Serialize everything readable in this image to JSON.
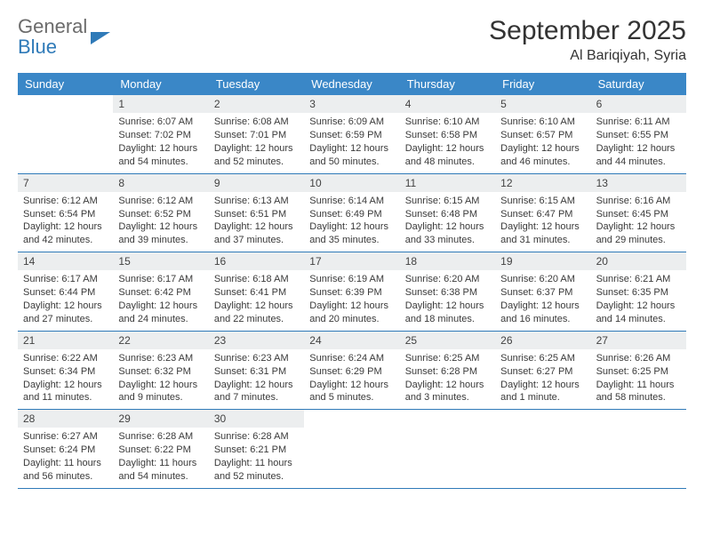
{
  "logo": {
    "line1": "General",
    "line2": "Blue"
  },
  "header": {
    "month": "September 2025",
    "location": "Al Bariqiyah, Syria"
  },
  "weekdays": [
    "Sunday",
    "Monday",
    "Tuesday",
    "Wednesday",
    "Thursday",
    "Friday",
    "Saturday"
  ],
  "colors": {
    "header_bg": "#3a87c7",
    "row_border": "#2f7ab8",
    "daynum_bg": "#eceeef",
    "logo_gray": "#6b6b6b",
    "logo_blue": "#2f7ab8"
  },
  "weeks": [
    [
      {
        "n": "",
        "sr": "",
        "ss": "",
        "dl": ""
      },
      {
        "n": "1",
        "sr": "Sunrise: 6:07 AM",
        "ss": "Sunset: 7:02 PM",
        "dl": "Daylight: 12 hours and 54 minutes."
      },
      {
        "n": "2",
        "sr": "Sunrise: 6:08 AM",
        "ss": "Sunset: 7:01 PM",
        "dl": "Daylight: 12 hours and 52 minutes."
      },
      {
        "n": "3",
        "sr": "Sunrise: 6:09 AM",
        "ss": "Sunset: 6:59 PM",
        "dl": "Daylight: 12 hours and 50 minutes."
      },
      {
        "n": "4",
        "sr": "Sunrise: 6:10 AM",
        "ss": "Sunset: 6:58 PM",
        "dl": "Daylight: 12 hours and 48 minutes."
      },
      {
        "n": "5",
        "sr": "Sunrise: 6:10 AM",
        "ss": "Sunset: 6:57 PM",
        "dl": "Daylight: 12 hours and 46 minutes."
      },
      {
        "n": "6",
        "sr": "Sunrise: 6:11 AM",
        "ss": "Sunset: 6:55 PM",
        "dl": "Daylight: 12 hours and 44 minutes."
      }
    ],
    [
      {
        "n": "7",
        "sr": "Sunrise: 6:12 AM",
        "ss": "Sunset: 6:54 PM",
        "dl": "Daylight: 12 hours and 42 minutes."
      },
      {
        "n": "8",
        "sr": "Sunrise: 6:12 AM",
        "ss": "Sunset: 6:52 PM",
        "dl": "Daylight: 12 hours and 39 minutes."
      },
      {
        "n": "9",
        "sr": "Sunrise: 6:13 AM",
        "ss": "Sunset: 6:51 PM",
        "dl": "Daylight: 12 hours and 37 minutes."
      },
      {
        "n": "10",
        "sr": "Sunrise: 6:14 AM",
        "ss": "Sunset: 6:49 PM",
        "dl": "Daylight: 12 hours and 35 minutes."
      },
      {
        "n": "11",
        "sr": "Sunrise: 6:15 AM",
        "ss": "Sunset: 6:48 PM",
        "dl": "Daylight: 12 hours and 33 minutes."
      },
      {
        "n": "12",
        "sr": "Sunrise: 6:15 AM",
        "ss": "Sunset: 6:47 PM",
        "dl": "Daylight: 12 hours and 31 minutes."
      },
      {
        "n": "13",
        "sr": "Sunrise: 6:16 AM",
        "ss": "Sunset: 6:45 PM",
        "dl": "Daylight: 12 hours and 29 minutes."
      }
    ],
    [
      {
        "n": "14",
        "sr": "Sunrise: 6:17 AM",
        "ss": "Sunset: 6:44 PM",
        "dl": "Daylight: 12 hours and 27 minutes."
      },
      {
        "n": "15",
        "sr": "Sunrise: 6:17 AM",
        "ss": "Sunset: 6:42 PM",
        "dl": "Daylight: 12 hours and 24 minutes."
      },
      {
        "n": "16",
        "sr": "Sunrise: 6:18 AM",
        "ss": "Sunset: 6:41 PM",
        "dl": "Daylight: 12 hours and 22 minutes."
      },
      {
        "n": "17",
        "sr": "Sunrise: 6:19 AM",
        "ss": "Sunset: 6:39 PM",
        "dl": "Daylight: 12 hours and 20 minutes."
      },
      {
        "n": "18",
        "sr": "Sunrise: 6:20 AM",
        "ss": "Sunset: 6:38 PM",
        "dl": "Daylight: 12 hours and 18 minutes."
      },
      {
        "n": "19",
        "sr": "Sunrise: 6:20 AM",
        "ss": "Sunset: 6:37 PM",
        "dl": "Daylight: 12 hours and 16 minutes."
      },
      {
        "n": "20",
        "sr": "Sunrise: 6:21 AM",
        "ss": "Sunset: 6:35 PM",
        "dl": "Daylight: 12 hours and 14 minutes."
      }
    ],
    [
      {
        "n": "21",
        "sr": "Sunrise: 6:22 AM",
        "ss": "Sunset: 6:34 PM",
        "dl": "Daylight: 12 hours and 11 minutes."
      },
      {
        "n": "22",
        "sr": "Sunrise: 6:23 AM",
        "ss": "Sunset: 6:32 PM",
        "dl": "Daylight: 12 hours and 9 minutes."
      },
      {
        "n": "23",
        "sr": "Sunrise: 6:23 AM",
        "ss": "Sunset: 6:31 PM",
        "dl": "Daylight: 12 hours and 7 minutes."
      },
      {
        "n": "24",
        "sr": "Sunrise: 6:24 AM",
        "ss": "Sunset: 6:29 PM",
        "dl": "Daylight: 12 hours and 5 minutes."
      },
      {
        "n": "25",
        "sr": "Sunrise: 6:25 AM",
        "ss": "Sunset: 6:28 PM",
        "dl": "Daylight: 12 hours and 3 minutes."
      },
      {
        "n": "26",
        "sr": "Sunrise: 6:25 AM",
        "ss": "Sunset: 6:27 PM",
        "dl": "Daylight: 12 hours and 1 minute."
      },
      {
        "n": "27",
        "sr": "Sunrise: 6:26 AM",
        "ss": "Sunset: 6:25 PM",
        "dl": "Daylight: 11 hours and 58 minutes."
      }
    ],
    [
      {
        "n": "28",
        "sr": "Sunrise: 6:27 AM",
        "ss": "Sunset: 6:24 PM",
        "dl": "Daylight: 11 hours and 56 minutes."
      },
      {
        "n": "29",
        "sr": "Sunrise: 6:28 AM",
        "ss": "Sunset: 6:22 PM",
        "dl": "Daylight: 11 hours and 54 minutes."
      },
      {
        "n": "30",
        "sr": "Sunrise: 6:28 AM",
        "ss": "Sunset: 6:21 PM",
        "dl": "Daylight: 11 hours and 52 minutes."
      },
      {
        "n": "",
        "sr": "",
        "ss": "",
        "dl": ""
      },
      {
        "n": "",
        "sr": "",
        "ss": "",
        "dl": ""
      },
      {
        "n": "",
        "sr": "",
        "ss": "",
        "dl": ""
      },
      {
        "n": "",
        "sr": "",
        "ss": "",
        "dl": ""
      }
    ]
  ]
}
